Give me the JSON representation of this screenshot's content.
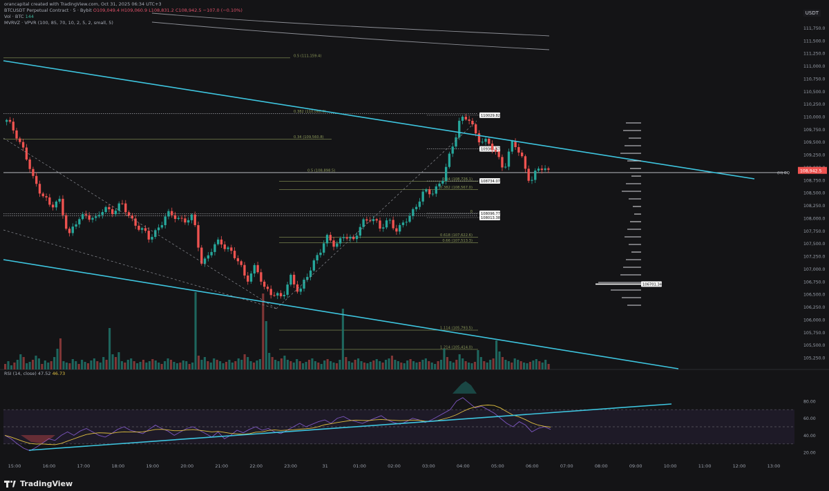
{
  "header": {
    "line0": "orancapital created with TradingView.com, Oct 31, 2025 06:34 UTC+3",
    "line1_prefix": "BTCUSDT Perpetual Contract · 5 · Bybit",
    "line1_values": "O109,049.4 H109,060.9 L108,831.2 C108,942.5 −107.0 (−0.10%)",
    "line2_prefix": "Vol · BTC",
    "line2_value": "144",
    "line3": "MVRVZ · VPVR (100, 85, 70, 10, 2, 5, 2, small, 5)",
    "rsi_label": "RSI (14, close)",
    "rsi_value1": "47.52",
    "rsi_value2": "46.73"
  },
  "price_unit": "USDT",
  "current_price_label": "108,942.5",
  "footer": {
    "brand": "TradingView"
  },
  "colors": {
    "background": "#141416",
    "bull": "#26a69a",
    "bear": "#ef5350",
    "trendline": "#3ec6e0",
    "fib": "#8d9a5a",
    "rsi_line": "#7e57c2",
    "rsi_ma": "#e0c040"
  },
  "chart_data": {
    "type": "candlestick",
    "price_axis": {
      "range": [
        105000,
        112000
      ],
      "ticks": [
        105250,
        105500,
        105750,
        106000,
        106250,
        106500,
        106750,
        107000,
        107250,
        107500,
        107750,
        108000,
        108250,
        108500,
        108750,
        109000,
        109250,
        109500,
        109750,
        110000,
        110250,
        110500,
        110750,
        111000,
        111250,
        111500,
        111750
      ],
      "tick_labels": [
        "105,250.0",
        "105,500.0",
        "105,750.0",
        "106,000.0",
        "106,250.0",
        "106,500.0",
        "106,750.0",
        "107,000.0",
        "107,250.0",
        "107,500.0",
        "107,750.0",
        "108,000.0",
        "108,250.0",
        "108,500.0",
        "108,750.0",
        "109,000.0",
        "109,250.0",
        "109,500.0",
        "109,750.0",
        "110,000.0",
        "110,250.0",
        "110,500.0",
        "110,750.0",
        "111,000.0",
        "111,250.0",
        "111,500.0",
        "111,750.0"
      ]
    },
    "time_axis": {
      "labels": [
        "15:00",
        "16:00",
        "17:00",
        "18:00",
        "19:00",
        "20:00",
        "21:00",
        "22:00",
        "23:00",
        "31",
        "01:00",
        "02:00",
        "03:00",
        "04:00",
        "05:00",
        "06:00",
        "07:00",
        "08:00",
        "09:00",
        "10:00",
        "11:00",
        "12:00",
        "13:00"
      ]
    },
    "price_path": [
      109900,
      109700,
      109300,
      108750,
      108500,
      108200,
      108350,
      107650,
      107950,
      108100,
      107950,
      108200,
      108150,
      108250,
      108000,
      107800,
      107600,
      107800,
      108050,
      108050,
      107950,
      108000,
      107100,
      107350,
      107550,
      107400,
      107150,
      106800,
      107050,
      106600,
      106550,
      106400,
      106850,
      106550,
      106900,
      107300,
      107600,
      107450,
      107700,
      107500,
      107950,
      108000,
      107800,
      108000,
      107700,
      108000,
      108200,
      108500,
      108550,
      108700,
      109300,
      109950,
      109950,
      109600,
      109500,
      109300,
      109000,
      109500,
      109200,
      108700,
      109000,
      108950
    ],
    "fib_levels": [
      {
        "label": "0.5 (111,159.4)",
        "price": 111160
      },
      {
        "label": "0.382 (110,060.0)",
        "price": 110060
      },
      {
        "label": "0.34 (109,560.8)",
        "price": 109560
      },
      {
        "label": "0.5 (108,898.5)",
        "price": 108898
      },
      {
        "label": "0.34 (108,726.1)",
        "price": 108726
      },
      {
        "label": "0.382 (108,567.0)",
        "price": 108567
      },
      {
        "label": "0",
        "price": 108090
      },
      {
        "label": "0.618 (107,622.6)",
        "price": 107622
      },
      {
        "label": "0.66 (107,513.3)",
        "price": 107513
      },
      {
        "label": "1.114 (105,793.5)",
        "price": 105793
      },
      {
        "label": "1.214 (105,414.0)",
        "price": 105414
      }
    ],
    "price_labels": [
      {
        "label": "110029.82",
        "price": 110029
      },
      {
        "label": "109366.67",
        "price": 109366
      },
      {
        "label": "108734.07",
        "price": 108734
      },
      {
        "label": "108096.77",
        "price": 108096
      },
      {
        "label": "108013.38",
        "price": 108013
      },
      {
        "label": "106701.34",
        "price": 106701
      },
      {
        "label": "(H) EQ",
        "price": 108898
      }
    ],
    "volume": [
      8,
      12,
      6,
      10,
      14,
      22,
      18,
      9,
      11,
      14,
      20,
      16,
      8,
      13,
      10,
      12,
      18,
      30,
      45,
      12,
      10,
      9,
      15,
      12,
      8,
      14,
      11,
      9,
      13,
      16,
      12,
      10,
      18,
      14,
      60,
      22,
      18,
      25,
      12,
      10,
      14,
      16,
      12,
      9,
      11,
      14,
      10,
      12,
      15,
      13,
      10,
      8,
      12,
      16,
      14,
      11,
      9,
      10,
      13,
      12,
      8,
      10,
      112,
      20,
      14,
      18,
      12,
      10,
      16,
      14,
      12,
      9,
      11,
      14,
      10,
      12,
      16,
      14,
      22,
      18,
      12,
      10,
      13,
      15,
      110,
      70,
      24,
      18,
      14,
      12,
      16,
      20,
      14,
      12,
      10,
      15,
      12,
      9,
      11,
      14,
      16,
      12,
      10,
      8,
      13,
      15,
      12,
      10,
      9,
      14,
      88,
      18,
      12,
      10,
      14,
      16,
      12,
      10,
      9,
      11,
      13,
      15,
      12,
      10,
      14,
      16,
      20,
      14,
      12,
      10,
      9,
      13,
      15,
      12,
      10,
      11,
      14,
      16,
      12,
      10,
      8,
      12,
      14,
      30,
      18,
      12,
      10,
      14,
      22,
      16,
      12,
      10,
      9,
      11,
      28,
      18,
      12,
      10,
      14,
      16,
      42,
      26,
      18,
      14,
      12,
      10,
      16,
      14,
      12,
      10,
      9,
      11,
      13,
      15,
      12,
      10,
      14,
      8
    ],
    "rsi": {
      "ylim": [
        0,
        100
      ],
      "ticks": [
        20,
        40,
        60,
        80
      ],
      "overbought": 70,
      "oversold": 30,
      "values": [
        40,
        36,
        30,
        25,
        22,
        26,
        31,
        36,
        34,
        40,
        44,
        40,
        45,
        48,
        44,
        40,
        38,
        42,
        47,
        50,
        46,
        44,
        42,
        47,
        52,
        48,
        45,
        40,
        44,
        48,
        50,
        46,
        42,
        38,
        44,
        36,
        40,
        46,
        43,
        47,
        50,
        46,
        48,
        44,
        42,
        46,
        50,
        54,
        50,
        53,
        56,
        58,
        54,
        60,
        62,
        58,
        56,
        54,
        57,
        60,
        63,
        58,
        55,
        53,
        56,
        60,
        58,
        55,
        58,
        62,
        66,
        70,
        80,
        84,
        78,
        72,
        74,
        70,
        66,
        60,
        54,
        50,
        56,
        52,
        44,
        48,
        50,
        47
      ]
    }
  }
}
